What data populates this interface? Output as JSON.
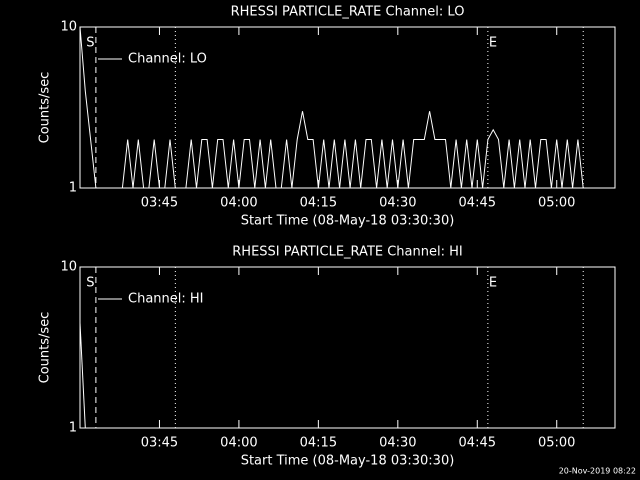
{
  "chart_data": [
    {
      "type": "line",
      "title": "RHESSI PARTICLE_RATE Channel: LO",
      "xlabel": "Start Time (08-May-18 03:30:30)",
      "ylabel": "Counts/sec",
      "log_y": true,
      "ylim": [
        1,
        10
      ],
      "yticks": [
        1,
        10
      ],
      "xlim": [
        "03:30",
        "05:11"
      ],
      "xticks": [
        "03:45",
        "04:00",
        "04:15",
        "04:30",
        "04:45",
        "05:00"
      ],
      "x": [
        "03:30",
        "03:31",
        "03:32",
        "03:33",
        "03:34",
        "03:35",
        "03:36",
        "03:37",
        "03:38",
        "03:39",
        "03:40",
        "03:41",
        "03:42",
        "03:43",
        "03:44",
        "03:45",
        "03:46",
        "03:47",
        "03:48",
        "03:49",
        "03:50",
        "03:51",
        "03:52",
        "03:53",
        "03:54",
        "03:55",
        "03:56",
        "03:57",
        "03:58",
        "03:59",
        "04:00",
        "04:01",
        "04:02",
        "04:03",
        "04:04",
        "04:05",
        "04:06",
        "04:07",
        "04:08",
        "04:09",
        "04:10",
        "04:11",
        "04:12",
        "04:13",
        "04:14",
        "04:15",
        "04:16",
        "04:17",
        "04:18",
        "04:19",
        "04:20",
        "04:21",
        "04:22",
        "04:23",
        "04:24",
        "04:25",
        "04:26",
        "04:27",
        "04:28",
        "04:29",
        "04:30",
        "04:31",
        "04:32",
        "04:33",
        "04:34",
        "04:35",
        "04:36",
        "04:37",
        "04:38",
        "04:39",
        "04:40",
        "04:41",
        "04:42",
        "04:43",
        "04:44",
        "04:45",
        "04:46",
        "04:47",
        "04:48",
        "04:49",
        "04:50",
        "04:51",
        "04:52",
        "04:53",
        "04:54",
        "04:55",
        "04:56",
        "04:57",
        "04:58",
        "04:59",
        "05:00",
        "05:01",
        "05:02",
        "05:03",
        "05:04",
        "05:05"
      ],
      "series": [
        {
          "name": "Channel: LO",
          "color": "#ffffff",
          "values": [
            10,
            4,
            2,
            1,
            1,
            1,
            1,
            1,
            1,
            2,
            1,
            2,
            1,
            1,
            2,
            1,
            1,
            2,
            1,
            1,
            1,
            2,
            1,
            2,
            2,
            1,
            2,
            2,
            1,
            2,
            1,
            2,
            2,
            1,
            2,
            1,
            2,
            1,
            1,
            2,
            1,
            2,
            3,
            2,
            2,
            1,
            2,
            1,
            2,
            1,
            2,
            1,
            2,
            1,
            2,
            2,
            1,
            2,
            1,
            2,
            1,
            2,
            1,
            2,
            2,
            2,
            3,
            2,
            2,
            2,
            1,
            2,
            1,
            2,
            1,
            2,
            1,
            2,
            2.3,
            2,
            1,
            2,
            1,
            2,
            1,
            2,
            1,
            2,
            2,
            1,
            2,
            1,
            2,
            1,
            2,
            1
          ]
        }
      ],
      "vlines": [
        {
          "x": "03:33",
          "style": "dashed"
        },
        {
          "x": "03:48",
          "style": "dotted"
        },
        {
          "x": "04:47",
          "style": "dotted"
        },
        {
          "x": "05:05",
          "style": "dotted"
        }
      ],
      "annotations": [
        {
          "x": "03:31",
          "text": "S"
        },
        {
          "x": "04:47",
          "text": "E"
        }
      ]
    },
    {
      "type": "line",
      "title": "RHESSI PARTICLE_RATE Channel: HI",
      "xlabel": "Start Time (08-May-18 03:30:30)",
      "ylabel": "Counts/sec",
      "log_y": true,
      "ylim": [
        1,
        10
      ],
      "yticks": [
        1,
        10
      ],
      "xlim": [
        "03:30",
        "05:11"
      ],
      "xticks": [
        "03:45",
        "04:00",
        "04:15",
        "04:30",
        "04:45",
        "05:00"
      ],
      "x": [
        "03:30",
        "03:31"
      ],
      "series": [
        {
          "name": "Channel: HI",
          "color": "#ffffff",
          "values": [
            4.5,
            1
          ]
        }
      ],
      "vlines": [
        {
          "x": "03:33",
          "style": "dashed"
        },
        {
          "x": "03:48",
          "style": "dotted"
        },
        {
          "x": "04:47",
          "style": "dotted"
        },
        {
          "x": "05:05",
          "style": "dotted"
        }
      ],
      "annotations": [
        {
          "x": "03:31",
          "text": "S"
        },
        {
          "x": "04:47",
          "text": "E"
        }
      ]
    }
  ],
  "footer": "20-Nov-2019 08:22"
}
